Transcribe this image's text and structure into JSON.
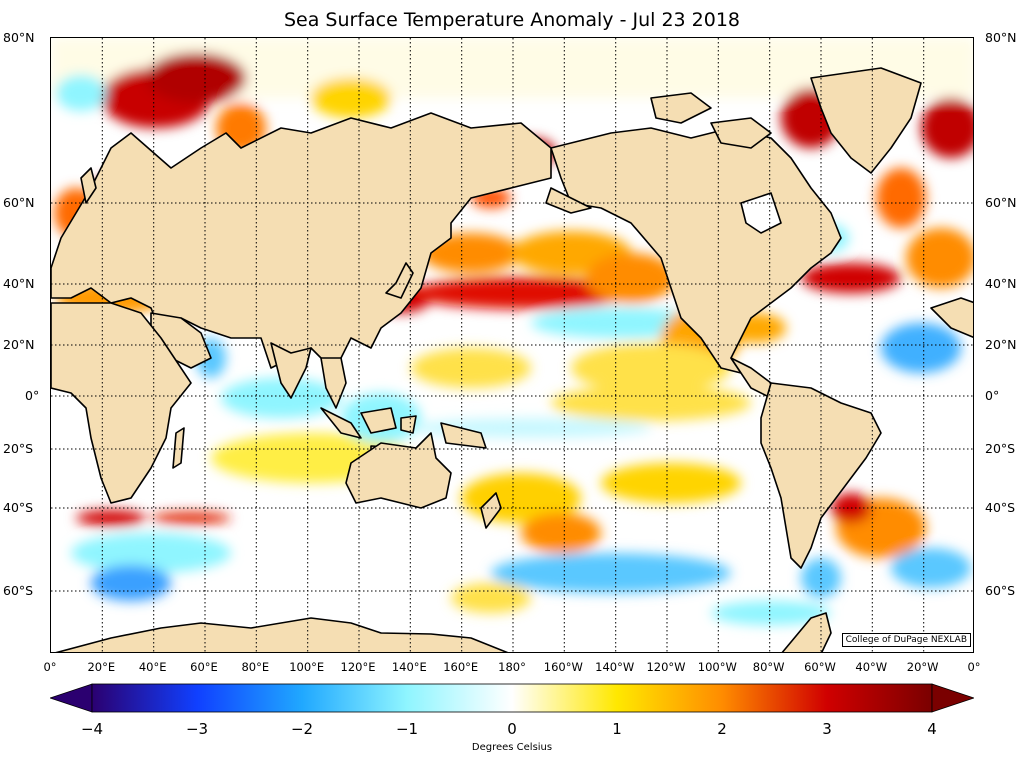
{
  "title": "Sea Surface Temperature Anomaly - Jul 23 2018",
  "credit": "College of DuPage NEXLAB",
  "lat_labels": [
    "80°N",
    "60°N",
    "40°N",
    "20°N",
    "0°",
    "20°S",
    "40°S",
    "60°S"
  ],
  "lon_labels": [
    "0°",
    "20°E",
    "40°E",
    "60°E",
    "80°E",
    "100°E",
    "120°E",
    "140°E",
    "160°E",
    "180°",
    "160°W",
    "140°W",
    "120°W",
    "100°W",
    "80°W",
    "60°W",
    "40°W",
    "20°W",
    "0°"
  ],
  "colorbar": {
    "ticks": [
      "−4",
      "−3",
      "−2",
      "−1",
      "0",
      "1",
      "2",
      "3",
      "4"
    ],
    "label": "Degrees Celsius",
    "range": [
      -4,
      4
    ],
    "stops": [
      "#2b0070",
      "#1040ff",
      "#20a8ff",
      "#8ff5ff",
      "#ffffff",
      "#ffe800",
      "#ff8c00",
      "#d00000",
      "#7a0000"
    ]
  },
  "colors": {
    "land": "#f5deb3",
    "coast": "#000000",
    "warm": "#d80000",
    "cool": "#3aa0ff"
  }
}
